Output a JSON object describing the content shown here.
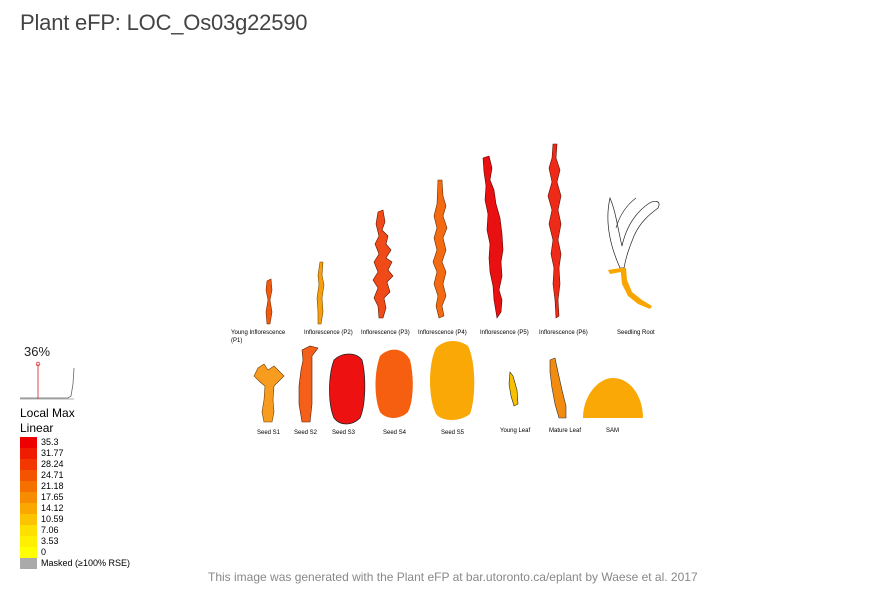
{
  "title": "Plant eFP: LOC_Os03g22590",
  "percentile": "36%",
  "legend": {
    "mode": "Local Max",
    "scale": "Linear",
    "entries": [
      {
        "value": "35.3",
        "color": "#ee0000"
      },
      {
        "value": "31.77",
        "color": "#f01c00"
      },
      {
        "value": "28.24",
        "color": "#f23800"
      },
      {
        "value": "24.71",
        "color": "#f45400"
      },
      {
        "value": "21.18",
        "color": "#f67000"
      },
      {
        "value": "17.65",
        "color": "#f88c00"
      },
      {
        "value": "14.12",
        "color": "#faa800"
      },
      {
        "value": "10.59",
        "color": "#fcc400"
      },
      {
        "value": "7.06",
        "color": "#fde000"
      },
      {
        "value": "3.53",
        "color": "#fef000"
      },
      {
        "value": "0",
        "color": "#ffff00"
      }
    ],
    "masked_label": "Masked (≥100% RSE)",
    "masked_color": "#aaaaaa"
  },
  "tissues": [
    {
      "label": "Young Inflorescence",
      "label2": "(P1)",
      "color": "#f25a10"
    },
    {
      "label": "Inflorescence (P2)",
      "color": "#f6a010"
    },
    {
      "label": "Inflorescence (P3)",
      "color": "#f04a18"
    },
    {
      "label": "Inflorescence (P4)",
      "color": "#f46a10"
    },
    {
      "label": "Inflorescence (P5)",
      "color": "#e81010"
    },
    {
      "label": "Inflorescence (P6)",
      "color": "#ee2a18"
    },
    {
      "label": "Seedling Root",
      "color": "#f9a500"
    },
    {
      "label": "Seed S1",
      "color": "#f89c20"
    },
    {
      "label": "Seed S2",
      "color": "#f4601a"
    },
    {
      "label": "Seed S3",
      "color": "#ee1111"
    },
    {
      "label": "Seed S4",
      "color": "#f65e10"
    },
    {
      "label": "Seed S5",
      "color": "#f9a806"
    },
    {
      "label": "Young Leaf",
      "color": "#f8c000"
    },
    {
      "label": "Mature Leaf",
      "color": "#f28c10"
    },
    {
      "label": "SAM",
      "color": "#f9a806"
    }
  ],
  "footer": "This image was generated with the Plant eFP at bar.utoronto.ca/eplant by Waese et al. 2017"
}
